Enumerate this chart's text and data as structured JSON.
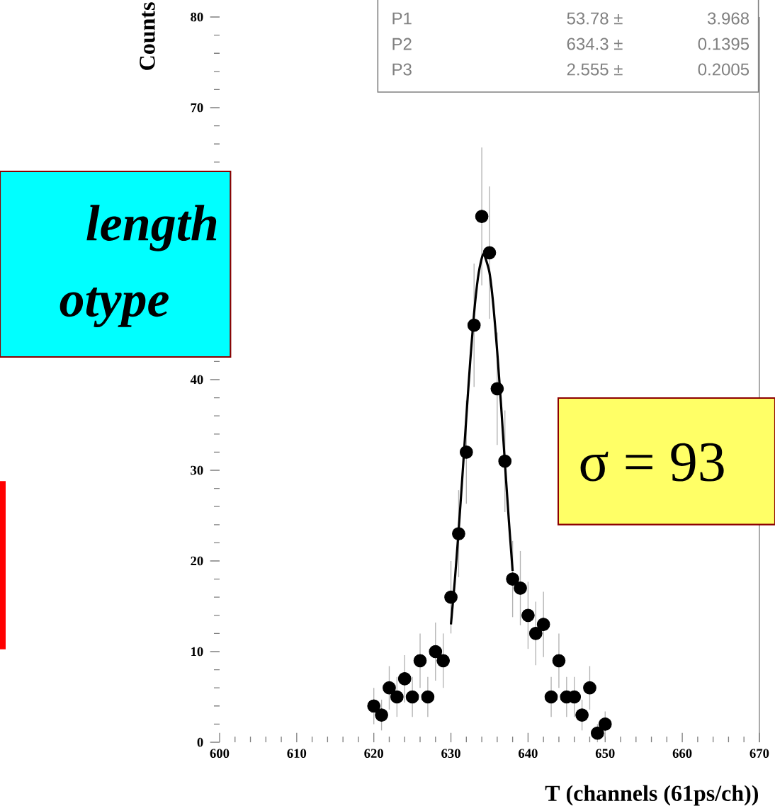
{
  "chart_data": {
    "type": "scatter",
    "xlabel": "T (channels (61ps/ch))",
    "ylabel": "Counts",
    "xlim": [
      600,
      670
    ],
    "ylim": [
      0,
      80
    ],
    "xticks": [
      600,
      610,
      620,
      630,
      640,
      650,
      660,
      670
    ],
    "yticks": [
      0,
      10,
      20,
      30,
      40,
      {
        "value": 50,
        "label": null
      },
      {
        "value": 60,
        "label": null
      },
      70,
      80
    ],
    "series": [
      {
        "marker": "circle",
        "color": "#000000",
        "x": [
          620,
          621,
          622,
          623,
          624,
          625,
          626,
          627,
          628,
          629,
          630,
          631,
          632,
          633,
          634,
          635,
          636,
          637,
          638,
          639,
          640,
          641,
          642,
          643,
          644,
          645,
          646,
          647,
          648,
          649,
          650
        ],
        "values": [
          4,
          3,
          6,
          5,
          7,
          5,
          9,
          5,
          10,
          9,
          16,
          23,
          32,
          46,
          58,
          54,
          39,
          31,
          18,
          17,
          14,
          12,
          13,
          5,
          9,
          5,
          5,
          3,
          6,
          1,
          2
        ],
        "errors": [
          2,
          1.7,
          2.4,
          2.2,
          2.6,
          2.2,
          3,
          2.2,
          3.2,
          3,
          4,
          4.8,
          5.7,
          6.8,
          7.6,
          7.3,
          6.2,
          5.6,
          4.2,
          4.1,
          3.7,
          3.5,
          3.6,
          2.2,
          3,
          2.2,
          2.2,
          1.7,
          2.4,
          1,
          1.4
        ]
      },
      {
        "type": "line",
        "marker": "none",
        "color": "#000000",
        "x": [
          630,
          630.5,
          631,
          631.5,
          632,
          632.5,
          633,
          633.5,
          634,
          634.3,
          635,
          635.5,
          636,
          636.5,
          637,
          637.5,
          638
        ],
        "values": [
          13,
          17.8,
          23.4,
          29.5,
          35.9,
          42,
          47.3,
          51.2,
          53.4,
          53.8,
          51.8,
          48.2,
          43.1,
          37.2,
          30.8,
          24.6,
          18.9
        ]
      }
    ],
    "annotations": [
      "P1",
      "53.78 ±",
      "3.968",
      "P2",
      "634.3 ±",
      "0.1395",
      "P3",
      "2.555 ±",
      "0.2005",
      "length",
      "otype",
      "σ = 93"
    ]
  }
}
